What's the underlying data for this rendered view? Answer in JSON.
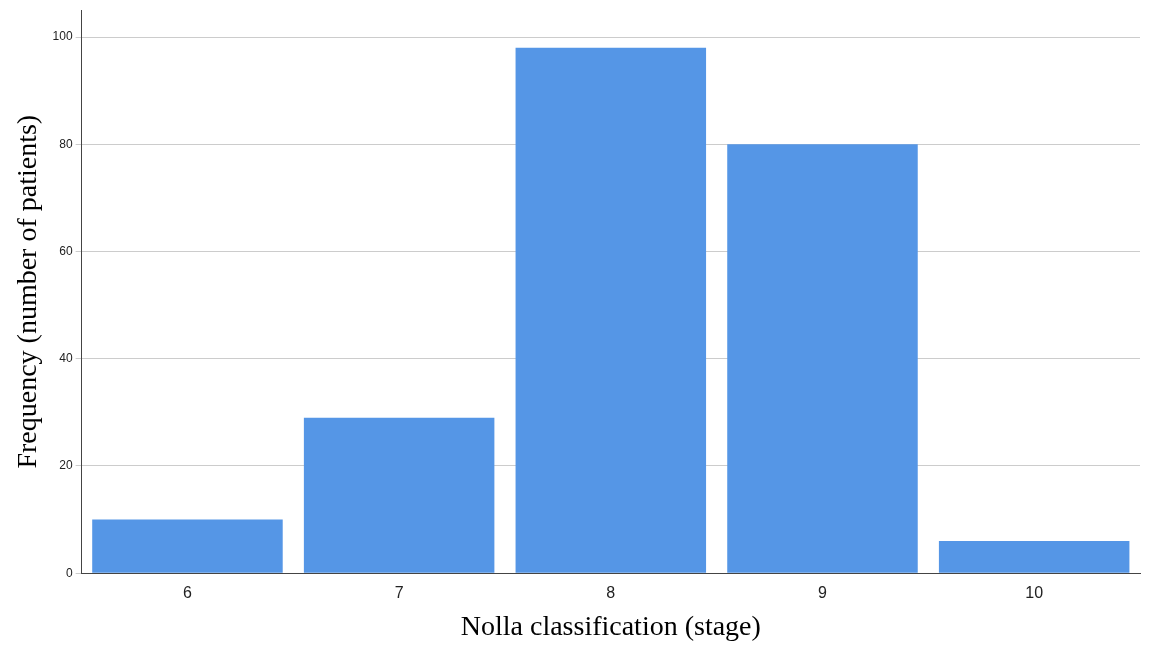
{
  "chart_data": {
    "type": "bar",
    "xlabel": "Nolla classification (stage)",
    "ylabel": "Frequency (number of patients)",
    "categories": [
      "6",
      "7",
      "8",
      "9",
      "10"
    ],
    "values": [
      10,
      29,
      98,
      80,
      6
    ],
    "color": "#5596e6",
    "ylim": [
      0,
      105
    ],
    "yticks": [
      0,
      20,
      40,
      60,
      80,
      100
    ],
    "grid": "y"
  }
}
